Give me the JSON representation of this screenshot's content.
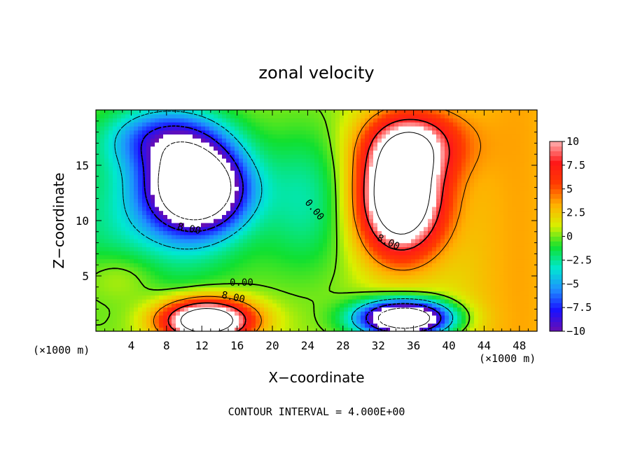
{
  "chart_data": {
    "type": "heatmap",
    "title": "zonal velocity",
    "xlabel": "X−coordinate",
    "ylabel": "Z−coordinate",
    "x_unit_left": "(×1000 m)",
    "x_unit_right": "(×1000 m)",
    "xlim": [
      0,
      50
    ],
    "ylim": [
      0,
      20
    ],
    "xticks": [
      4,
      8,
      12,
      16,
      20,
      24,
      28,
      32,
      36,
      40,
      44,
      48
    ],
    "xtick_labels": [
      "4",
      "8",
      "12",
      "16",
      "20",
      "24",
      "28",
      "32",
      "36",
      "40",
      "44",
      "48"
    ],
    "yticks": [
      5,
      10,
      15
    ],
    "ytick_labels": [
      "5",
      "10",
      "15"
    ],
    "colorbar": {
      "range": [
        -10,
        10
      ],
      "ticks": [
        10,
        7.5,
        5,
        2.5,
        0,
        -2.5,
        -5,
        -7.5,
        -10
      ],
      "tick_labels": [
        "10",
        "7.5",
        "5",
        "2.5",
        "0",
        "−2.5",
        "−5",
        "−7.5",
        "−10"
      ],
      "colors_low_to_high": [
        "#6a0fb0",
        "#1a10ff",
        "#1e90ff",
        "#00e8d0",
        "#10e030",
        "#d8f000",
        "#ffb000",
        "#ff3a00",
        "#ff1818",
        "#ffb0b0"
      ]
    },
    "contour_labels": [
      "8.00",
      "0.00",
      "0.00",
      "8.00",
      "8.00"
    ],
    "contour_interval_text": "CONTOUR INTERVAL = 4.000E+00",
    "features": [
      {
        "name": "upper-left jet core",
        "x": 11.5,
        "z": 13.0,
        "value": -10
      },
      {
        "name": "upper-right jet core",
        "x": 34.5,
        "z": 12.0,
        "value": 10
      },
      {
        "name": "lower-left jet core",
        "x": 12.5,
        "z": 1.0,
        "value": 10
      },
      {
        "name": "lower-right jet core",
        "x": 35.0,
        "z": 1.2,
        "value": -10
      },
      {
        "name": "upper-left band",
        "x": 8.0,
        "z": 17.5,
        "value": -8
      },
      {
        "name": "right-edge band",
        "x": 47.0,
        "z": 10.0,
        "value": 1.5
      }
    ]
  }
}
